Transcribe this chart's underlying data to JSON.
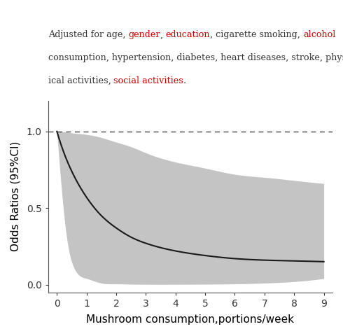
{
  "xlabel": "Mushroom consumption,portions/week",
  "ylabel": "Odds Ratios (95%CI)",
  "xlim": [
    -0.3,
    9.3
  ],
  "ylim": [
    -0.05,
    1.2
  ],
  "xticks": [
    0,
    1,
    2,
    3,
    4,
    5,
    6,
    7,
    8,
    9
  ],
  "yticks": [
    0.0,
    0.5,
    1.0
  ],
  "dashed_line_y": 1.0,
  "curve_color": "#1a1a1a",
  "fill_color": "#b0b0b0",
  "fill_alpha": 0.75,
  "background_color": "#ffffff",
  "x_pts_upper": [
    0,
    0.1,
    0.5,
    1.0,
    1.5,
    2.0,
    2.5,
    3.0,
    4.0,
    5.0,
    6.0,
    7.0,
    8.0,
    9.0
  ],
  "y_pts_upper": [
    1.0,
    1.0,
    0.99,
    0.98,
    0.96,
    0.93,
    0.9,
    0.86,
    0.8,
    0.76,
    0.72,
    0.7,
    0.68,
    0.66
  ],
  "x_pts_lower": [
    0,
    0.1,
    0.3,
    0.6,
    1.0,
    1.5,
    2.0,
    2.5,
    3.0,
    4.0,
    5.0,
    6.0,
    7.0,
    8.0,
    9.0
  ],
  "y_pts_lower": [
    1.0,
    0.75,
    0.35,
    0.1,
    0.04,
    0.01,
    0.005,
    0.003,
    0.002,
    0.002,
    0.003,
    0.005,
    0.01,
    0.02,
    0.04
  ],
  "x_pts_center": [
    0,
    0.2,
    0.5,
    1.0,
    1.5,
    2.0,
    2.5,
    3.0,
    4.0,
    5.0,
    6.0,
    7.0,
    8.0,
    9.0
  ],
  "y_pts_center": [
    1.0,
    0.88,
    0.74,
    0.57,
    0.45,
    0.37,
    0.31,
    0.27,
    0.22,
    0.19,
    0.17,
    0.16,
    0.155,
    0.15
  ],
  "line1_parts": [
    [
      "Adjusted for age, ",
      "#333333"
    ],
    [
      "gender",
      "#cc0000"
    ],
    [
      ", ",
      "#333333"
    ],
    [
      "education",
      "#cc0000"
    ],
    [
      ", cigarette smoking, ",
      "#333333"
    ],
    [
      "alcohol",
      "#cc0000"
    ]
  ],
  "line2_parts": [
    [
      "consumption, hypertension, diabetes, heart diseases, stroke, phys-",
      "#333333"
    ]
  ],
  "line3_parts": [
    [
      "ical activities, ",
      "#333333"
    ],
    [
      "social activities",
      "#cc0000"
    ],
    [
      ".",
      "#333333"
    ]
  ],
  "ann_fontsize": 9.2
}
